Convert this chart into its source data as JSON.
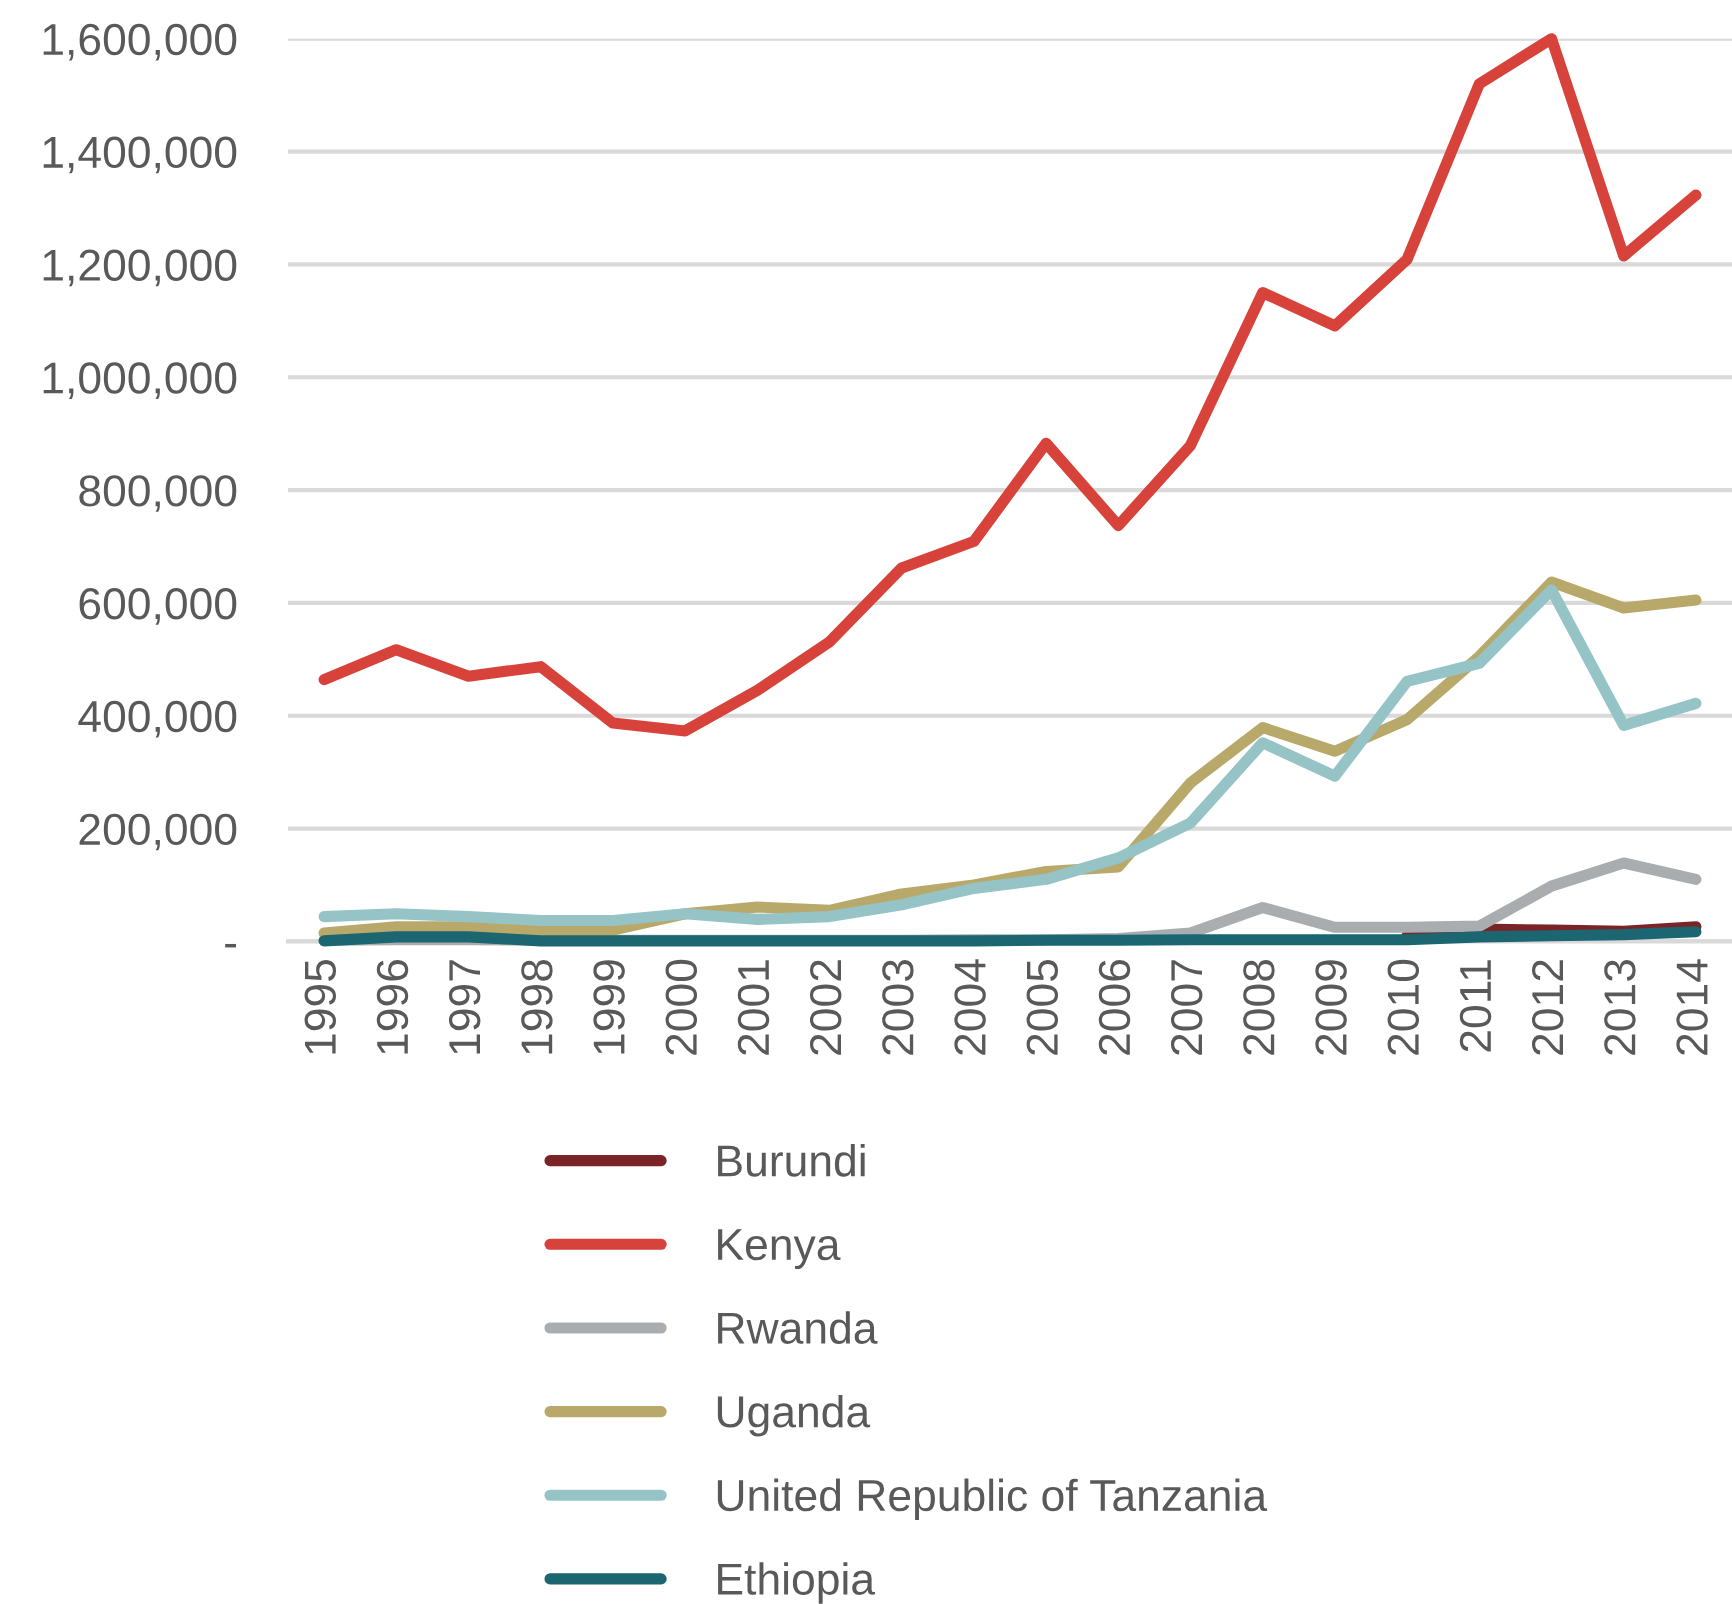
{
  "chart_data": {
    "type": "line",
    "categories": [
      "1995",
      "1996",
      "1997",
      "1998",
      "1999",
      "2000",
      "2001",
      "2002",
      "2003",
      "2004",
      "2005",
      "2006",
      "2007",
      "2008",
      "2009",
      "2010",
      "2011",
      "2012",
      "2013",
      "2014"
    ],
    "series": [
      {
        "name": "Burundi",
        "color": "#7b2428",
        "values": [
          null,
          null,
          null,
          null,
          null,
          null,
          null,
          null,
          null,
          null,
          null,
          null,
          null,
          null,
          null,
          10000,
          22000,
          20000,
          18000,
          26000
        ]
      },
      {
        "name": "Kenya",
        "color": "#d7423a",
        "values": [
          464000,
          517000,
          470000,
          487000,
          387000,
          373000,
          445000,
          531000,
          662000,
          709000,
          883000,
          737000,
          879000,
          1150000,
          1091000,
          1209000,
          1520000,
          1600000,
          1215000,
          1323000
        ]
      },
      {
        "name": "Rwanda",
        "color": "#a9adb0",
        "values": [
          2000,
          3000,
          3000,
          2000,
          2000,
          2000,
          2000,
          2000,
          2000,
          3000,
          3000,
          5000,
          15000,
          60000,
          25000,
          25000,
          27000,
          98000,
          139000,
          110000
        ]
      },
      {
        "name": "Uganda",
        "color": "#b8a96a",
        "values": [
          15000,
          26000,
          26000,
          20000,
          20000,
          49000,
          61000,
          55000,
          84000,
          100000,
          124000,
          132000,
          281000,
          379000,
          337000,
          393000,
          505000,
          637000,
          591000,
          605000
        ]
      },
      {
        "name": "United Republic of Tanzania",
        "color": "#95c3c6",
        "values": [
          44000,
          49000,
          44000,
          37000,
          37000,
          49000,
          39000,
          44000,
          65000,
          94000,
          110000,
          148000,
          210000,
          352000,
          293000,
          461000,
          493000,
          623000,
          383000,
          422000
        ]
      },
      {
        "name": "Ethiopia",
        "color": "#1b6670",
        "values": [
          1000,
          8000,
          8000,
          1000,
          1000,
          1000,
          1000,
          1000,
          1000,
          1000,
          2000,
          2000,
          3000,
          3000,
          3000,
          3000,
          8000,
          10000,
          12000,
          17000
        ]
      }
    ],
    "ylim": [
      0,
      1600000
    ],
    "yticks": [
      {
        "value": 0,
        "label": "-"
      },
      {
        "value": 200000,
        "label": "200,000"
      },
      {
        "value": 400000,
        "label": "400,000"
      },
      {
        "value": 600000,
        "label": "600,000"
      },
      {
        "value": 800000,
        "label": "800,000"
      },
      {
        "value": 1000000,
        "label": "1,000,000"
      },
      {
        "value": 1200000,
        "label": "1,200,000"
      },
      {
        "value": 1400000,
        "label": "1,400,000"
      },
      {
        "value": 1600000,
        "label": "1,600,000"
      }
    ],
    "grid": "y",
    "legend": "bottom",
    "line_style": "solid"
  }
}
